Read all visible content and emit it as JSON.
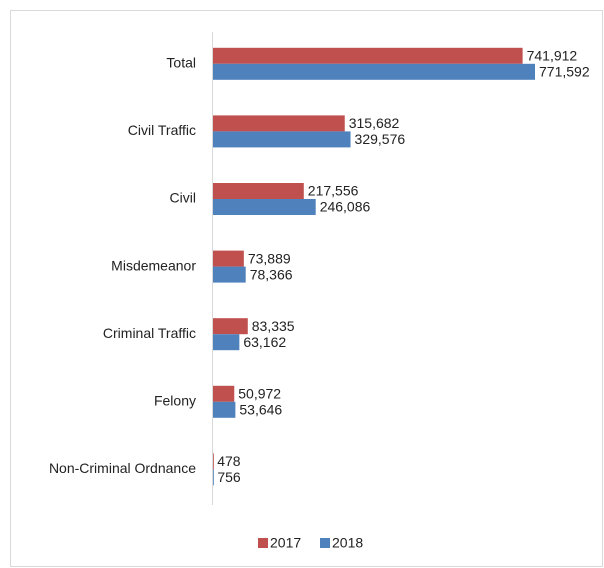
{
  "chart_data": {
    "type": "bar",
    "orientation": "horizontal",
    "categories": [
      "Total",
      "Civil Traffic",
      "Civil",
      "Misdemeanor",
      "Criminal Traffic",
      "Felony",
      "Non-Criminal Ordnance"
    ],
    "series": [
      {
        "name": "2017",
        "color": "#c0504d",
        "values": [
          741912,
          315682,
          217556,
          73889,
          83335,
          50972,
          478
        ],
        "value_labels": [
          "741,912",
          "315,682",
          "217,556",
          "73,889",
          "83,335",
          "50,972",
          "478"
        ]
      },
      {
        "name": "2018",
        "color": "#4f81bd",
        "values": [
          771592,
          329576,
          246086,
          78366,
          63162,
          53646,
          756
        ],
        "value_labels": [
          "771,592",
          "329,576",
          "246,086",
          "78,366",
          "63,162",
          "53,646",
          "756"
        ]
      }
    ],
    "legend": "bottom"
  }
}
